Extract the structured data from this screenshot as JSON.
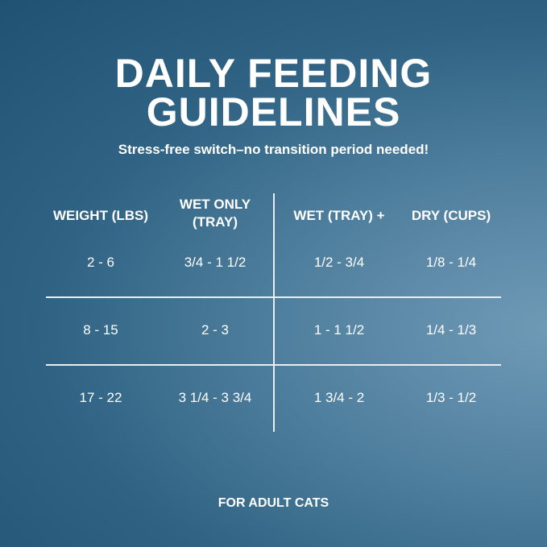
{
  "header": {
    "title_lines": [
      "DAILY FEEDING",
      "GUIDELINES"
    ],
    "subtitle": "Stress-free switch–no transition period needed!"
  },
  "table": {
    "headers": [
      "WEIGHT (LBS)",
      "WET ONLY (TRAY)",
      "WET (TRAY) +",
      "DRY (CUPS)"
    ],
    "rows": [
      [
        "2 - 6",
        "3/4 - 1 1/2",
        "1/2 - 3/4",
        "1/8 - 1/4"
      ],
      [
        "8 - 15",
        "2 - 3",
        "1 - 1 1/2",
        "1/4 - 1/3"
      ],
      [
        "17 - 22",
        "3 1/4 - 3 3/4",
        "1 3/4 - 2",
        "1/3 - 1/2"
      ]
    ]
  },
  "footer": "FOR ADULT CATS"
}
